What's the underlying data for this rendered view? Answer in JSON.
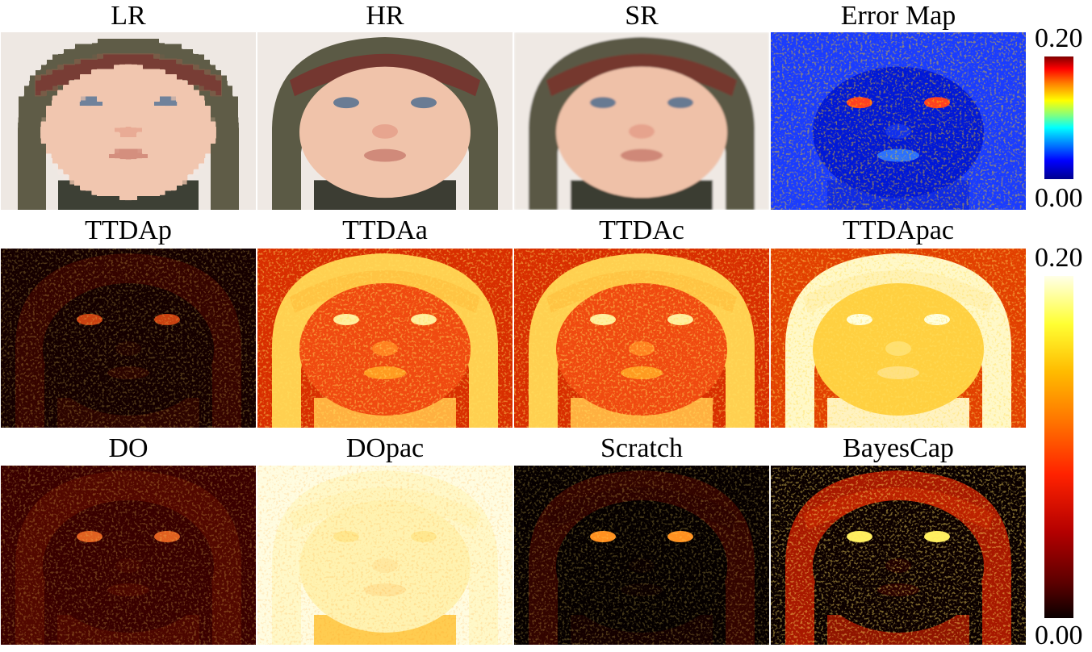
{
  "rows": [
    {
      "panels": [
        {
          "label": "LR",
          "style": "photo-pixel"
        },
        {
          "label": "HR",
          "style": "photo"
        },
        {
          "label": "SR",
          "style": "photo-soft"
        },
        {
          "label": "Error Map",
          "style": "jet"
        }
      ],
      "colorbar": {
        "max": "0.20",
        "min": "0.00",
        "colormap": "jet"
      }
    },
    {
      "panels": [
        {
          "label": "TTDAp",
          "style": "hot-dark"
        },
        {
          "label": "TTDAa",
          "style": "hot-bright"
        },
        {
          "label": "TTDAc",
          "style": "hot-bright"
        },
        {
          "label": "TTDApac",
          "style": "hot-brighter"
        }
      ],
      "colorbar": {
        "max": "0.20",
        "min": "0.00",
        "colormap": "hot"
      }
    },
    {
      "panels": [
        {
          "label": "DO",
          "style": "hot-dim"
        },
        {
          "label": "DOpac",
          "style": "hot-white"
        },
        {
          "label": "Scratch",
          "style": "hot-black"
        },
        {
          "label": "BayesCap",
          "style": "hot-mid"
        }
      ]
    }
  ],
  "colors": {
    "background": "#ffffff",
    "jet": [
      "#00008f",
      "#0000ff",
      "#00ffff",
      "#ffff00",
      "#ff0000",
      "#800000"
    ],
    "hot": [
      "#0a0000",
      "#b30000",
      "#ff3300",
      "#ffaa00",
      "#ffff33",
      "#ffffe8"
    ]
  }
}
